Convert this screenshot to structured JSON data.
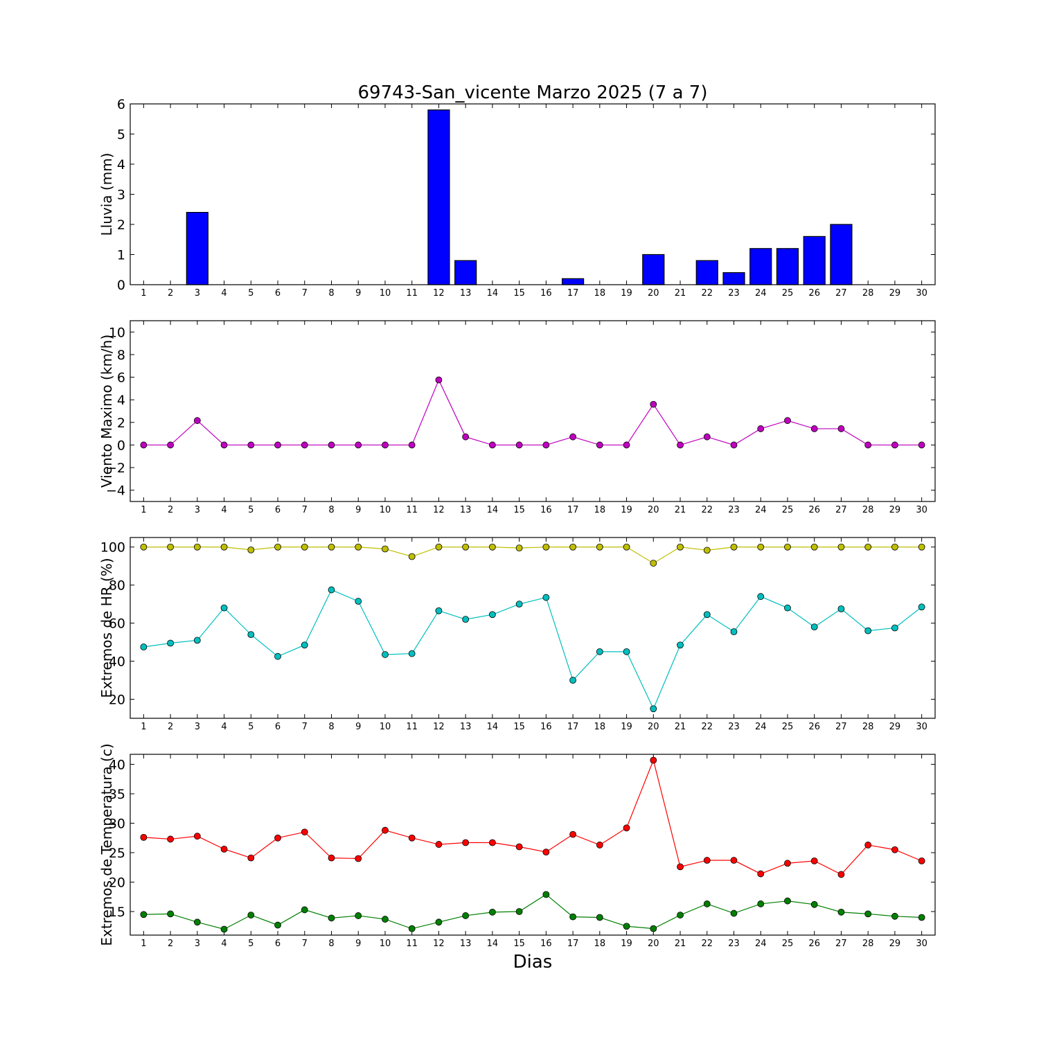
{
  "title": "69743-San_vicente Marzo 2025  (7 a 7)",
  "xlabel": "Dias",
  "chart_data": [
    {
      "type": "bar",
      "ylabel": "Lluvia (mm)",
      "x": [
        1,
        2,
        3,
        4,
        5,
        6,
        7,
        8,
        9,
        10,
        11,
        12,
        13,
        14,
        15,
        16,
        17,
        18,
        19,
        20,
        21,
        22,
        23,
        24,
        25,
        26,
        27,
        28,
        29,
        30
      ],
      "ylim": [
        0,
        6
      ],
      "yticks": [
        0,
        1,
        2,
        3,
        4,
        5,
        6
      ],
      "color": "#0000ff",
      "series": [
        {
          "values": [
            0,
            0,
            2.4,
            0,
            0,
            0,
            0,
            0,
            0,
            0,
            0,
            5.8,
            0.8,
            0,
            0,
            0,
            0.2,
            0,
            0,
            1.0,
            0,
            0.8,
            0.4,
            1.2,
            1.2,
            1.6,
            2.0,
            0,
            0,
            0
          ]
        }
      ]
    },
    {
      "type": "line",
      "ylabel": "Viento Maximo (km/h)",
      "x": [
        1,
        2,
        3,
        4,
        5,
        6,
        7,
        8,
        9,
        10,
        11,
        12,
        13,
        14,
        15,
        16,
        17,
        18,
        19,
        20,
        21,
        22,
        23,
        24,
        25,
        26,
        27,
        28,
        29,
        30
      ],
      "ylim": [
        -5,
        11
      ],
      "yticks": [
        -4,
        -2,
        0,
        2,
        4,
        6,
        8,
        10
      ],
      "series": [
        {
          "color": "#bf00bf",
          "values": [
            0,
            0,
            2.16,
            0,
            0,
            0,
            0,
            0,
            0,
            0,
            0,
            5.76,
            0.72,
            0,
            0,
            0,
            0.72,
            0,
            0,
            3.6,
            0,
            0.72,
            0,
            1.44,
            2.16,
            1.44,
            1.44,
            0,
            0,
            0
          ]
        }
      ]
    },
    {
      "type": "line",
      "ylabel": "Extremos de HR (%)",
      "x": [
        1,
        2,
        3,
        4,
        5,
        6,
        7,
        8,
        9,
        10,
        11,
        12,
        13,
        14,
        15,
        16,
        17,
        18,
        19,
        20,
        21,
        22,
        23,
        24,
        25,
        26,
        27,
        28,
        29,
        30
      ],
      "ylim": [
        10,
        105
      ],
      "yticks": [
        20,
        40,
        60,
        80,
        100
      ],
      "series": [
        {
          "color": "#bfbf00",
          "values": [
            100,
            100,
            100,
            100,
            98.5,
            100,
            100,
            100,
            100,
            99,
            95,
            100,
            100,
            100,
            99.5,
            100,
            100,
            100,
            100,
            91.5,
            100,
            98.3,
            100,
            100,
            100,
            100,
            100,
            100,
            100,
            100
          ]
        },
        {
          "color": "#00bfbf",
          "values": [
            47.5,
            49.5,
            51,
            68,
            54,
            42.5,
            48.5,
            77.5,
            71.5,
            43.5,
            44,
            66.5,
            62,
            64.5,
            70,
            73.5,
            30,
            45,
            45,
            15,
            48.5,
            64.5,
            55.5,
            74,
            68,
            58,
            67.5,
            56,
            57.5,
            68.5
          ]
        }
      ]
    },
    {
      "type": "line",
      "ylabel": "Extremos de Temperatura (c)",
      "x": [
        1,
        2,
        3,
        4,
        5,
        6,
        7,
        8,
        9,
        10,
        11,
        12,
        13,
        14,
        15,
        16,
        17,
        18,
        19,
        20,
        21,
        22,
        23,
        24,
        25,
        26,
        27,
        28,
        29,
        30
      ],
      "ylim": [
        11,
        41.7
      ],
      "yticks": [
        15,
        20,
        25,
        30,
        35,
        40
      ],
      "series": [
        {
          "color": "#ff0000",
          "values": [
            27.6,
            27.3,
            27.8,
            25.6,
            24.1,
            27.5,
            28.5,
            24.1,
            24.0,
            28.8,
            27.5,
            26.4,
            26.7,
            26.7,
            26.0,
            25.1,
            28.1,
            26.3,
            29.2,
            40.7,
            22.6,
            23.7,
            23.7,
            21.4,
            23.2,
            23.6,
            21.3,
            26.3,
            25.5,
            23.6
          ]
        },
        {
          "color": "#007f00",
          "values": [
            14.5,
            14.6,
            13.2,
            12.0,
            14.4,
            12.7,
            15.3,
            13.9,
            14.3,
            13.7,
            12.1,
            13.2,
            14.3,
            14.9,
            15.0,
            17.9,
            14.1,
            14.0,
            12.5,
            12.1,
            14.4,
            16.3,
            14.7,
            16.3,
            16.8,
            16.2,
            14.9,
            14.6,
            14.2,
            14.0
          ]
        }
      ]
    }
  ]
}
